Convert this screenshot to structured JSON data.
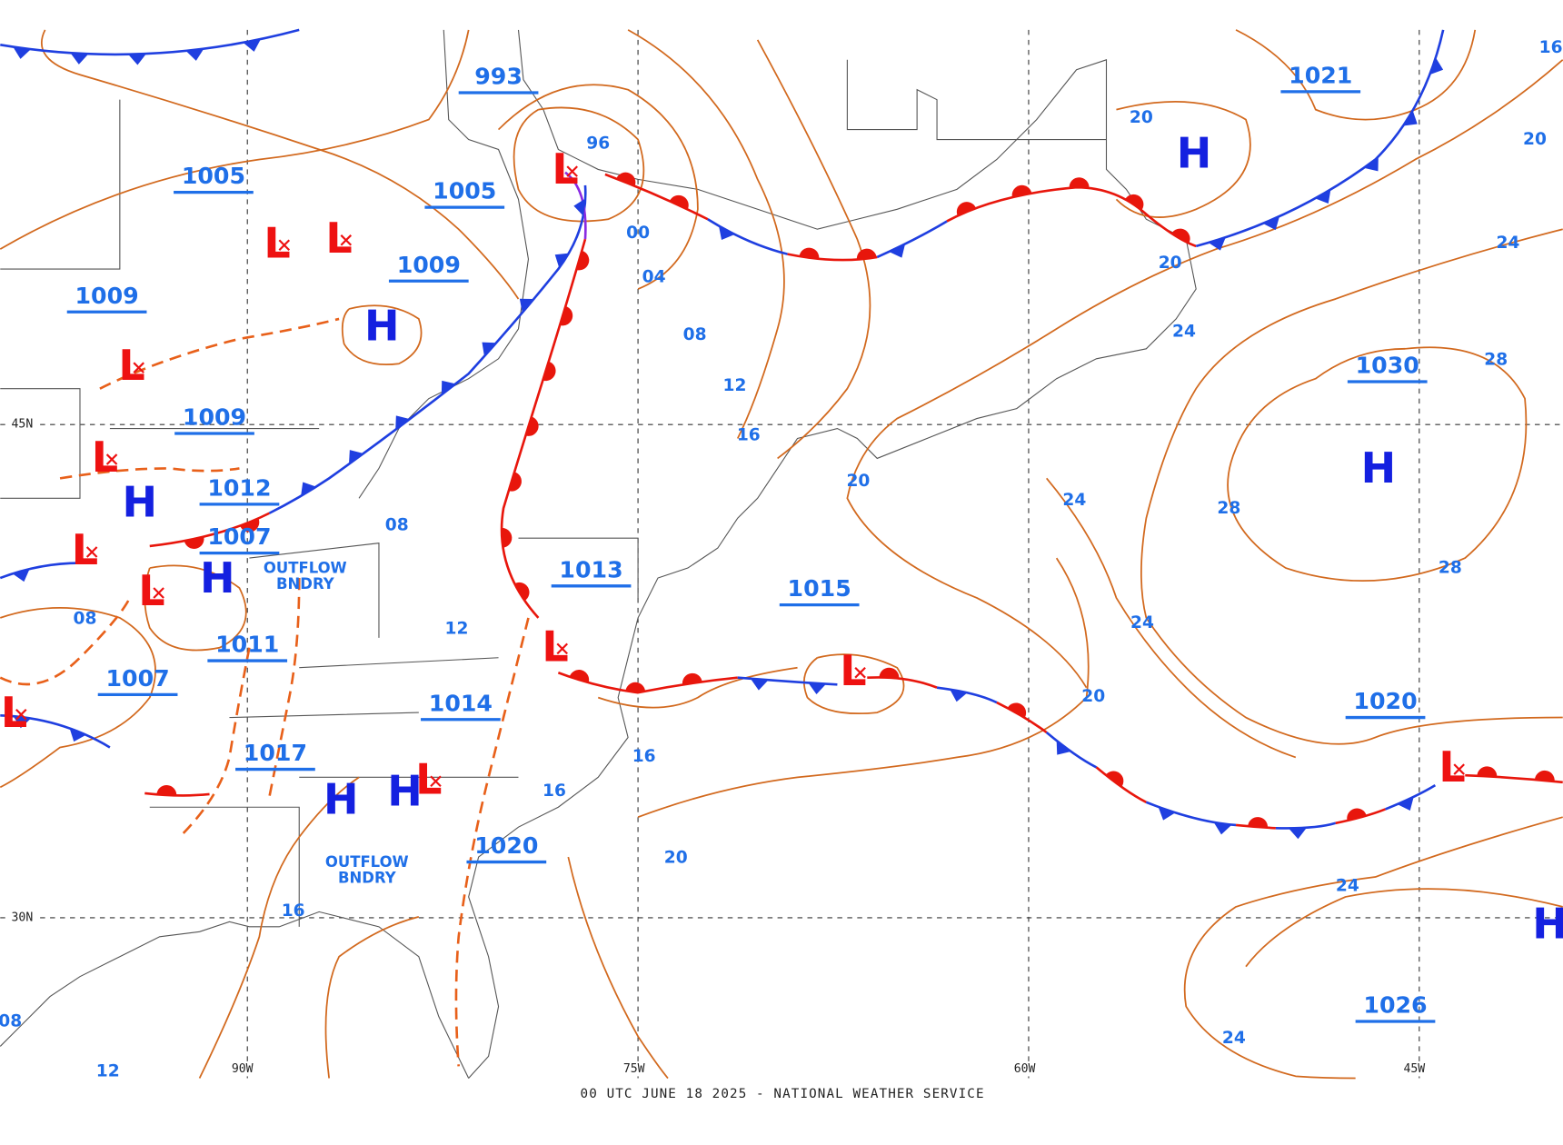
{
  "footer": "00 UTC JUNE 18 2025 - NATIONAL WEATHER SERVICE",
  "grid_labels": [
    "45N",
    "30N",
    "90W",
    "75W",
    "60W",
    "45W"
  ],
  "pressure_boxes": [
    "993",
    "1005",
    "1005",
    "1009",
    "1009",
    "1009",
    "1012",
    "1007",
    "1013",
    "1011",
    "1007",
    "1014",
    "1017",
    "1020",
    "1015",
    "1021",
    "1030",
    "1020",
    "1026"
  ],
  "centers": [
    "L",
    "L",
    "L",
    "H",
    "L",
    "L",
    "H",
    "L",
    "H",
    "L",
    "L",
    "L",
    "L",
    "L",
    "H",
    "H",
    "H",
    "H",
    "L",
    "H"
  ],
  "isobar_labels": [
    "96",
    "00",
    "04",
    "08",
    "12",
    "16",
    "20",
    "20",
    "24",
    "20",
    "24",
    "28",
    "24",
    "28",
    "28",
    "24",
    "20",
    "16",
    "20",
    "16",
    "16",
    "20",
    "24",
    "24",
    "08",
    "12",
    "08",
    "16",
    "12",
    "08"
  ],
  "boundary_labels": [
    [
      "OUTFLOW",
      "BNDRY"
    ],
    [
      "OUTFLOW",
      "BNDRY"
    ]
  ]
}
